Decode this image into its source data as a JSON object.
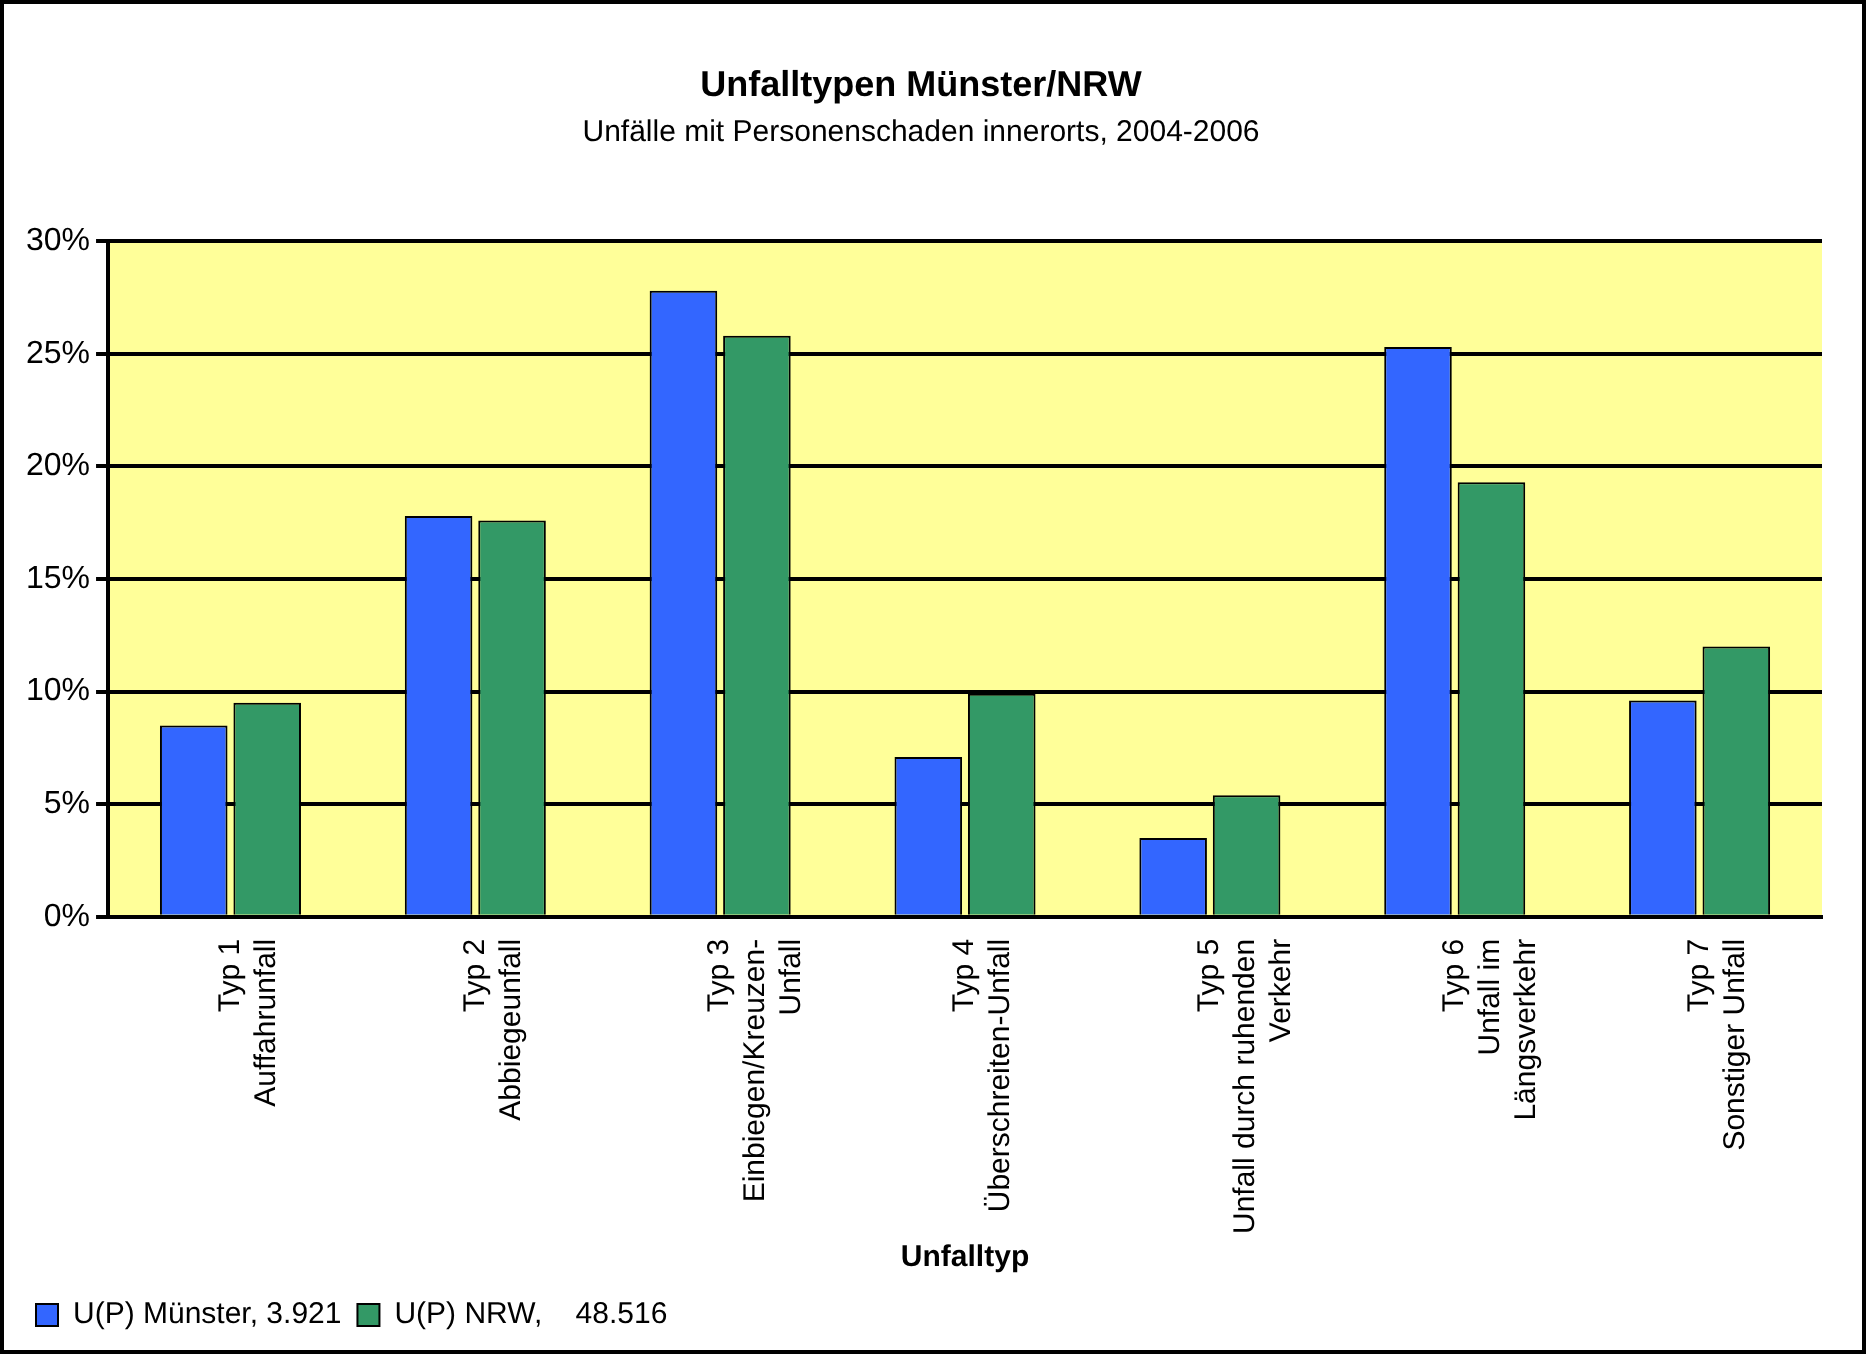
{
  "chart_data": {
    "type": "bar",
    "title": "Unfalltypen Münster/NRW",
    "subtitle": "Unfälle mit Personenschaden innerorts, 2004-2006",
    "xlabel": "Unfalltyp",
    "categories": [
      "Typ 1\nAuffahrunfall",
      "Typ 2\nAbbiegeunfall",
      "Typ 3\nEinbiegen/Kreuzen-\nUnfall",
      "Typ 4\nÜberschreiten-Unfall",
      "Typ 5\nUnfall durch ruhenden\nVerkehr",
      "Typ 6\nUnfall im\nLängsverkehr",
      "Typ 7\nSonstiger Unfall"
    ],
    "series": [
      {
        "name": "U(P) Münster, 3.921",
        "color": "#3366ff",
        "values": [
          8.5,
          17.8,
          27.8,
          7.1,
          3.5,
          25.3,
          9.6
        ]
      },
      {
        "name": "U(P) NRW,    48.516",
        "color": "#339966",
        "values": [
          9.5,
          17.6,
          25.8,
          9.9,
          5.4,
          19.3,
          12.0
        ]
      }
    ],
    "ylim": [
      0,
      30
    ],
    "yticks": [
      {
        "value": 0,
        "label": "0%"
      },
      {
        "value": 5,
        "label": "5%"
      },
      {
        "value": 10,
        "label": "10%"
      },
      {
        "value": 15,
        "label": "15%"
      },
      {
        "value": 20,
        "label": "20%"
      },
      {
        "value": 25,
        "label": "25%"
      },
      {
        "value": 30,
        "label": "30%"
      }
    ],
    "grid": "y",
    "legend": "bottom left"
  }
}
